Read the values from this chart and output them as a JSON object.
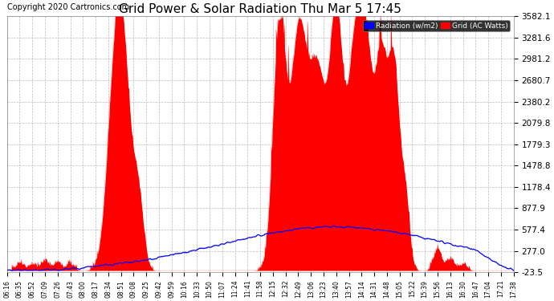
{
  "title": "Grid Power & Solar Radiation Thu Mar 5 17:45",
  "copyright": "Copyright 2020 Cartronics.com",
  "yticks": [
    3582.1,
    3281.6,
    2981.2,
    2680.7,
    2380.2,
    2079.8,
    1779.3,
    1478.8,
    1178.4,
    877.9,
    577.4,
    277.0,
    -23.5
  ],
  "ymin": -23.5,
  "ymax": 3582.1,
  "legend_radiation": "Radiation (w/m2)",
  "legend_grid": "Grid (AC Watts)",
  "radiation_color": "blue",
  "grid_color": "red",
  "background_color": "white",
  "plot_bg_color": "white",
  "grid_line_color": "#bbbbbb",
  "title_fontsize": 11,
  "copyright_fontsize": 7,
  "tick_fontsize": 7.5,
  "xtick_labels": [
    "06:16",
    "06:35",
    "06:52",
    "07:09",
    "07:26",
    "07:43",
    "08:00",
    "08:17",
    "08:34",
    "08:51",
    "09:08",
    "09:25",
    "09:42",
    "09:59",
    "10:16",
    "10:33",
    "10:50",
    "11:07",
    "11:24",
    "11:41",
    "11:58",
    "12:15",
    "12:32",
    "12:49",
    "13:06",
    "13:23",
    "13:40",
    "13:57",
    "14:14",
    "14:31",
    "14:48",
    "15:05",
    "15:22",
    "15:39",
    "15:56",
    "16:13",
    "16:30",
    "16:47",
    "17:04",
    "17:21",
    "17:38"
  ]
}
